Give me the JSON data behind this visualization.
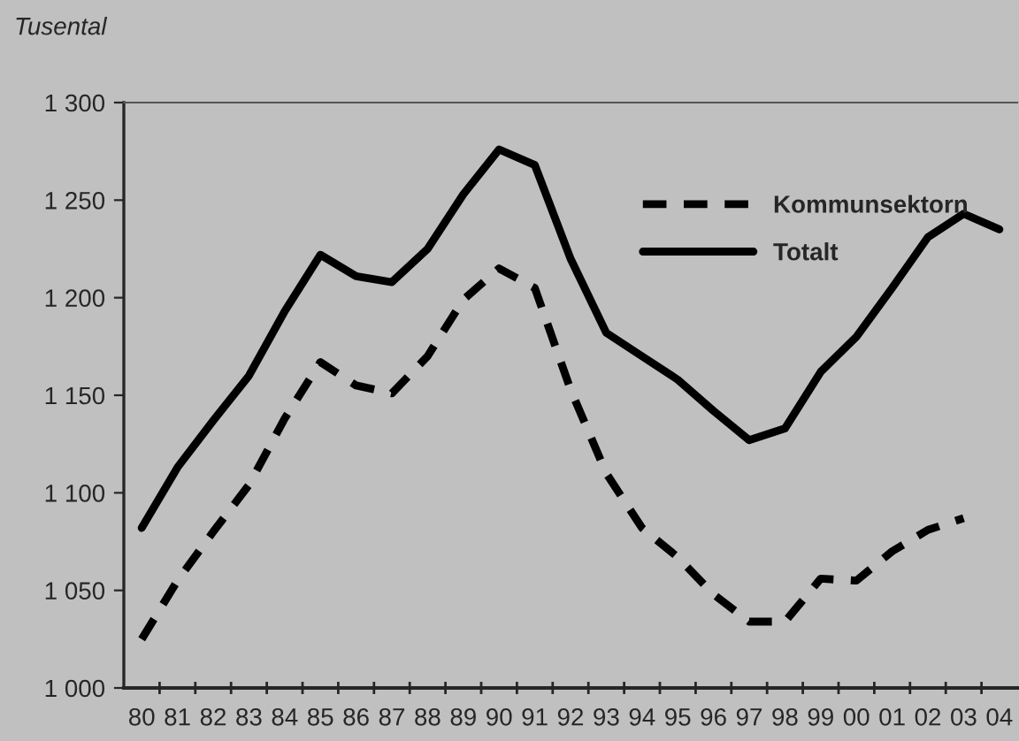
{
  "chart_data": {
    "type": "line",
    "ylabel": "Tusental",
    "categories": [
      "80",
      "81",
      "82",
      "83",
      "84",
      "85",
      "86",
      "87",
      "88",
      "89",
      "90",
      "91",
      "92",
      "93",
      "94",
      "95",
      "96",
      "97",
      "98",
      "99",
      "00",
      "01",
      "02",
      "03",
      "04"
    ],
    "series": [
      {
        "name": "Kommunsektorn",
        "color": "#000000",
        "line_style": "dashed",
        "values": [
          1025,
          1055,
          1080,
          1104,
          1138,
          1167,
          1155,
          1151,
          1170,
          1199,
          1215,
          1205,
          1153,
          1110,
          1082,
          1067,
          1048,
          1034,
          1034,
          1056,
          1055,
          1070,
          1081,
          1087,
          null
        ]
      },
      {
        "name": "Totalt",
        "color": "#000000",
        "line_style": "solid",
        "values": [
          1082,
          1113,
          1137,
          1160,
          1193,
          1222,
          1211,
          1208,
          1225,
          1253,
          1276,
          1268,
          1220,
          1182,
          1170,
          1158,
          1142,
          1127,
          1133,
          1162,
          1180,
          1205,
          1231,
          1243,
          1235
        ]
      }
    ],
    "ylim": [
      1000,
      1300
    ],
    "yticks": [
      {
        "value": 1000,
        "label": "1 000"
      },
      {
        "value": 1050,
        "label": "1 050"
      },
      {
        "value": 1100,
        "label": "1 100"
      },
      {
        "value": 1150,
        "label": "1 150"
      },
      {
        "value": 1200,
        "label": "1 200"
      },
      {
        "value": 1250,
        "label": "1 250"
      },
      {
        "value": 1300,
        "label": "1 300"
      }
    ],
    "grid": false,
    "legend": "top right",
    "marker": "none"
  }
}
